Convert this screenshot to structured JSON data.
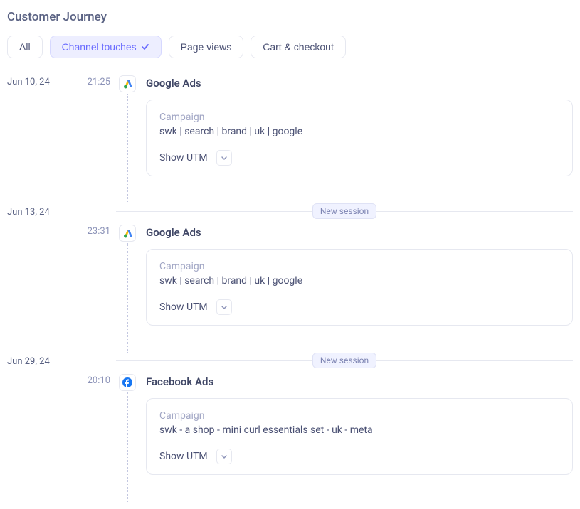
{
  "title": "Customer Journey",
  "filters": [
    {
      "label": "All",
      "active": false
    },
    {
      "label": "Channel touches",
      "active": true
    },
    {
      "label": "Page views",
      "active": false
    },
    {
      "label": "Cart & checkout",
      "active": false
    }
  ],
  "labels": {
    "campaign": "Campaign",
    "show_utm": "Show UTM",
    "new_session": "New session"
  },
  "icons": {
    "google_ads": "google-ads-icon",
    "facebook_ads": "facebook-ads-icon"
  },
  "days": [
    {
      "date": "Jun 10, 24",
      "new_session": false,
      "entries": [
        {
          "time": "21:25",
          "channel": "Google Ads",
          "icon": "google_ads",
          "campaign": "swk | search | brand | uk | google"
        }
      ]
    },
    {
      "date": "Jun 13, 24",
      "new_session": true,
      "entries": [
        {
          "time": "23:31",
          "channel": "Google Ads",
          "icon": "google_ads",
          "campaign": "swk | search | brand | uk | google"
        }
      ]
    },
    {
      "date": "Jun 29, 24",
      "new_session": true,
      "entries": [
        {
          "time": "20:10",
          "channel": "Facebook Ads",
          "icon": "facebook_ads",
          "campaign": "swk - a shop - mini curl essentials set - uk - meta"
        }
      ]
    }
  ],
  "colors": {
    "text": "#4a5073",
    "muted": "#8c93b8",
    "label": "#a2a7c5",
    "border": "#e6e8f0",
    "active_bg": "#edeeff",
    "active_text": "#6a6cff",
    "badge_bg": "#f0f2ff"
  }
}
